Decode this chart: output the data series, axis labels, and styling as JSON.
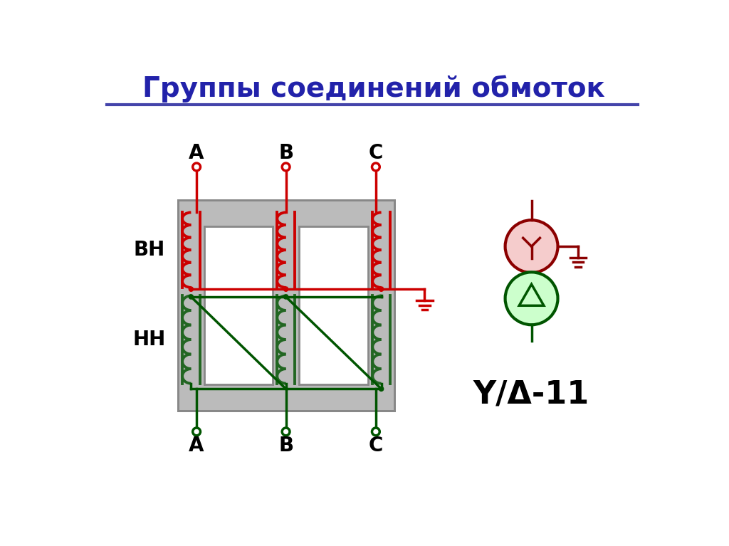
{
  "title": "Группы соединений обмоток",
  "title_color": "#2222AA",
  "title_fontsize": 28,
  "bg_color": "#FFFFFF",
  "red_color": "#CC0000",
  "dark_red_color": "#8B0000",
  "green_color": "#227722",
  "dark_green_color": "#005500",
  "coil_green": "#226622",
  "gray_color": "#BBBBBB",
  "gray_edge": "#888888",
  "label_BH": "ВН",
  "label_NN": "НН",
  "label_formula": "Y/Δ-11",
  "line_color_separator": "#4444AA",
  "lw_wire": 2.5,
  "lw_coil": 2.8,
  "lw_frame": 2.0,
  "lw_sym": 3.0
}
